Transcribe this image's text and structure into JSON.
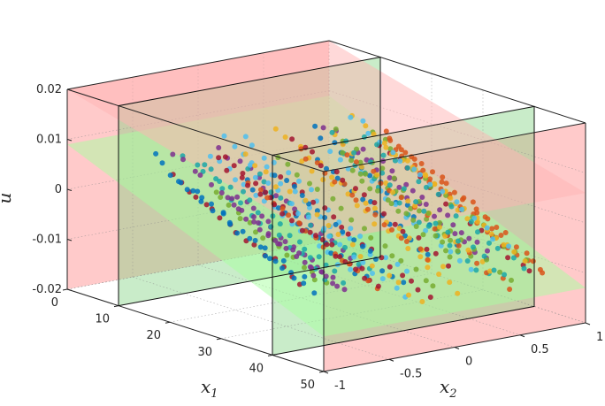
{
  "chart_data": {
    "type": "scatter",
    "projection": "3d-box",
    "x1": {
      "label": "x",
      "label_sub": "1",
      "range": [
        0,
        50
      ],
      "ticks": [
        "0",
        "10",
        "20",
        "30",
        "40",
        "50"
      ]
    },
    "x2": {
      "label": "x",
      "label_sub": "2",
      "range": [
        -1,
        1
      ],
      "ticks": [
        "-1",
        "-0.5",
        "0",
        "0.5",
        "1"
      ]
    },
    "u": {
      "label": "u",
      "range": [
        -0.02,
        0.02
      ],
      "ticks": [
        "-0.02",
        "-0.01",
        "0",
        "0.01",
        "0.02"
      ]
    },
    "grid": true,
    "legend": "none",
    "planes": [
      {
        "name": "outer-region-x1-low",
        "axis": "x1",
        "value": 0,
        "color": "#ff8080"
      },
      {
        "name": "outer-region-x1-high",
        "axis": "x1",
        "value": 50,
        "color": "#ff8080"
      },
      {
        "name": "inner-region-x1-low",
        "axis": "x1",
        "value": 10,
        "color": "#7fd27f"
      },
      {
        "name": "inner-region-x1-high",
        "axis": "x1",
        "value": 40,
        "color": "#7fd27f"
      }
    ],
    "surfaces": [
      {
        "name": "boundary-surface-lower",
        "u_at_x1_min": 0.009,
        "u_at_x1_max": -0.013,
        "color": "#a8ffa0"
      },
      {
        "name": "boundary-surface-upper",
        "u_at_x1_min": 0.02,
        "u_at_x1_max": 0.006,
        "color": "#ffb3b3"
      }
    ],
    "scatter": {
      "note_trend": "u decreases roughly linearly with x1",
      "x1_range": [
        10,
        48
      ],
      "x2_range": [
        -0.85,
        0.85
      ],
      "u_at_x1_10": 0.009,
      "u_at_x1_48": -0.011,
      "spread_u": 0.004,
      "series_colors": [
        "#0072BD",
        "#D95319",
        "#EDB120",
        "#7E2F8E",
        "#77AC30",
        "#4DBEEE",
        "#A2142F",
        "#1aa7a7"
      ]
    }
  }
}
